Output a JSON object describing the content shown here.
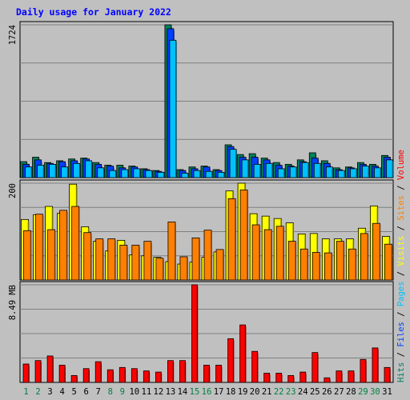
{
  "chart_data": {
    "type": "bar",
    "title": "Daily usage for January 2022",
    "days": [
      "1",
      "2",
      "3",
      "4",
      "5",
      "6",
      "7",
      "8",
      "9",
      "10",
      "11",
      "12",
      "13",
      "14",
      "15",
      "16",
      "17",
      "18",
      "19",
      "20",
      "21",
      "22",
      "23",
      "24",
      "25",
      "26",
      "27",
      "28",
      "29",
      "30",
      "31"
    ],
    "weekend_days": [
      "1",
      "2",
      "8",
      "9",
      "15",
      "16",
      "22",
      "23",
      "29",
      "30"
    ],
    "panels": [
      {
        "id": "hits-files-pages",
        "max_label": "1724",
        "max": 1724,
        "series": [
          {
            "name": "Hits",
            "color": "#00805c",
            "values": [
              180,
              230,
              170,
              190,
              210,
              220,
              170,
              140,
              140,
              130,
              100,
              80,
              1724,
              90,
              120,
              130,
              90,
              370,
              260,
              270,
              220,
              170,
              150,
              200,
              280,
              190,
              110,
              120,
              170,
              150,
              250
            ]
          },
          {
            "name": "Files",
            "color": "#0040ff",
            "values": [
              150,
              200,
              160,
              180,
              190,
              210,
              150,
              130,
              110,
              120,
              90,
              70,
              1680,
              80,
              100,
              120,
              80,
              350,
              230,
              230,
              200,
              140,
              130,
              180,
              220,
              160,
              90,
              110,
              150,
              130,
              230
            ]
          },
          {
            "name": "Pages",
            "color": "#00c0ff",
            "values": [
              120,
              140,
              150,
              120,
              160,
              190,
              110,
              80,
              90,
              100,
              80,
              60,
              1550,
              50,
              80,
              70,
              60,
              320,
              200,
              150,
              160,
              100,
              120,
              170,
              160,
              120,
              80,
              100,
              130,
              110,
              200
            ]
          }
        ],
        "legend": [
          "Hits",
          "Files",
          "Pages"
        ],
        "legend_colors": [
          "#00805c",
          "#0040ff",
          "#00c0ff"
        ]
      },
      {
        "id": "visits-sites",
        "max_label": "200",
        "max": 200,
        "series": [
          {
            "name": "Visits",
            "color": "#ffff00",
            "values": [
              125,
              135,
              152,
              138,
              198,
              110,
              80,
              60,
              82,
              52,
              50,
              47,
              38,
              33,
              37,
              47,
              58,
              184,
              200,
              137,
              132,
              127,
              118,
              95,
              96,
              85,
              85,
              85,
              107,
              153,
              90
            ]
          },
          {
            "name": "Sites",
            "color": "#ff8000",
            "values": [
              102,
              136,
              104,
              144,
              152,
              98,
              85,
              85,
              72,
              72,
              80,
              45,
              120,
              48,
              87,
              103,
              63,
              168,
              186,
              114,
              104,
              111,
              80,
              64,
              57,
              56,
              80,
              64,
              96,
              117,
              74
            ]
          }
        ],
        "legend": [
          "Visits",
          "Sites"
        ],
        "legend_colors": [
          "#ffff00",
          "#ff8000"
        ]
      },
      {
        "id": "volume",
        "max_label": "8.49 MB",
        "max": 8.49,
        "series": [
          {
            "name": "Volume",
            "color": "#ff0000",
            "values": [
              1.6,
              1.9,
              2.3,
              1.5,
              0.6,
              1.2,
              1.8,
              1.1,
              1.3,
              1.2,
              1.0,
              0.9,
              1.9,
              1.9,
              8.49,
              1.5,
              1.5,
              3.8,
              5.0,
              2.7,
              0.8,
              0.8,
              0.6,
              0.9,
              2.6,
              0.4,
              1.0,
              1.0,
              2.0,
              3.0,
              1.3
            ]
          }
        ],
        "legend": [
          "Volume"
        ],
        "legend_colors": [
          "#ff0000"
        ]
      }
    ],
    "grid": true
  },
  "right_labels": [
    {
      "text": "Hits",
      "color": "#00805c"
    },
    {
      "text": " / ",
      "color": "#000000"
    },
    {
      "text": "Files",
      "color": "#0040ff"
    },
    {
      "text": " / ",
      "color": "#000000"
    },
    {
      "text": "Pages",
      "color": "#00c0ff"
    },
    {
      "text": " / ",
      "color": "#000000"
    },
    {
      "text": "Visits",
      "color": "#ffff00"
    },
    {
      "text": " / ",
      "color": "#000000"
    },
    {
      "text": "Sites",
      "color": "#ff8000"
    },
    {
      "text": " / ",
      "color": "#000000"
    },
    {
      "text": "Volume",
      "color": "#ff0000"
    }
  ],
  "colors": {
    "background": "#c0c0c0",
    "title": "#0000ff",
    "weekday_label": "#000000",
    "weekend_label": "#008040"
  }
}
